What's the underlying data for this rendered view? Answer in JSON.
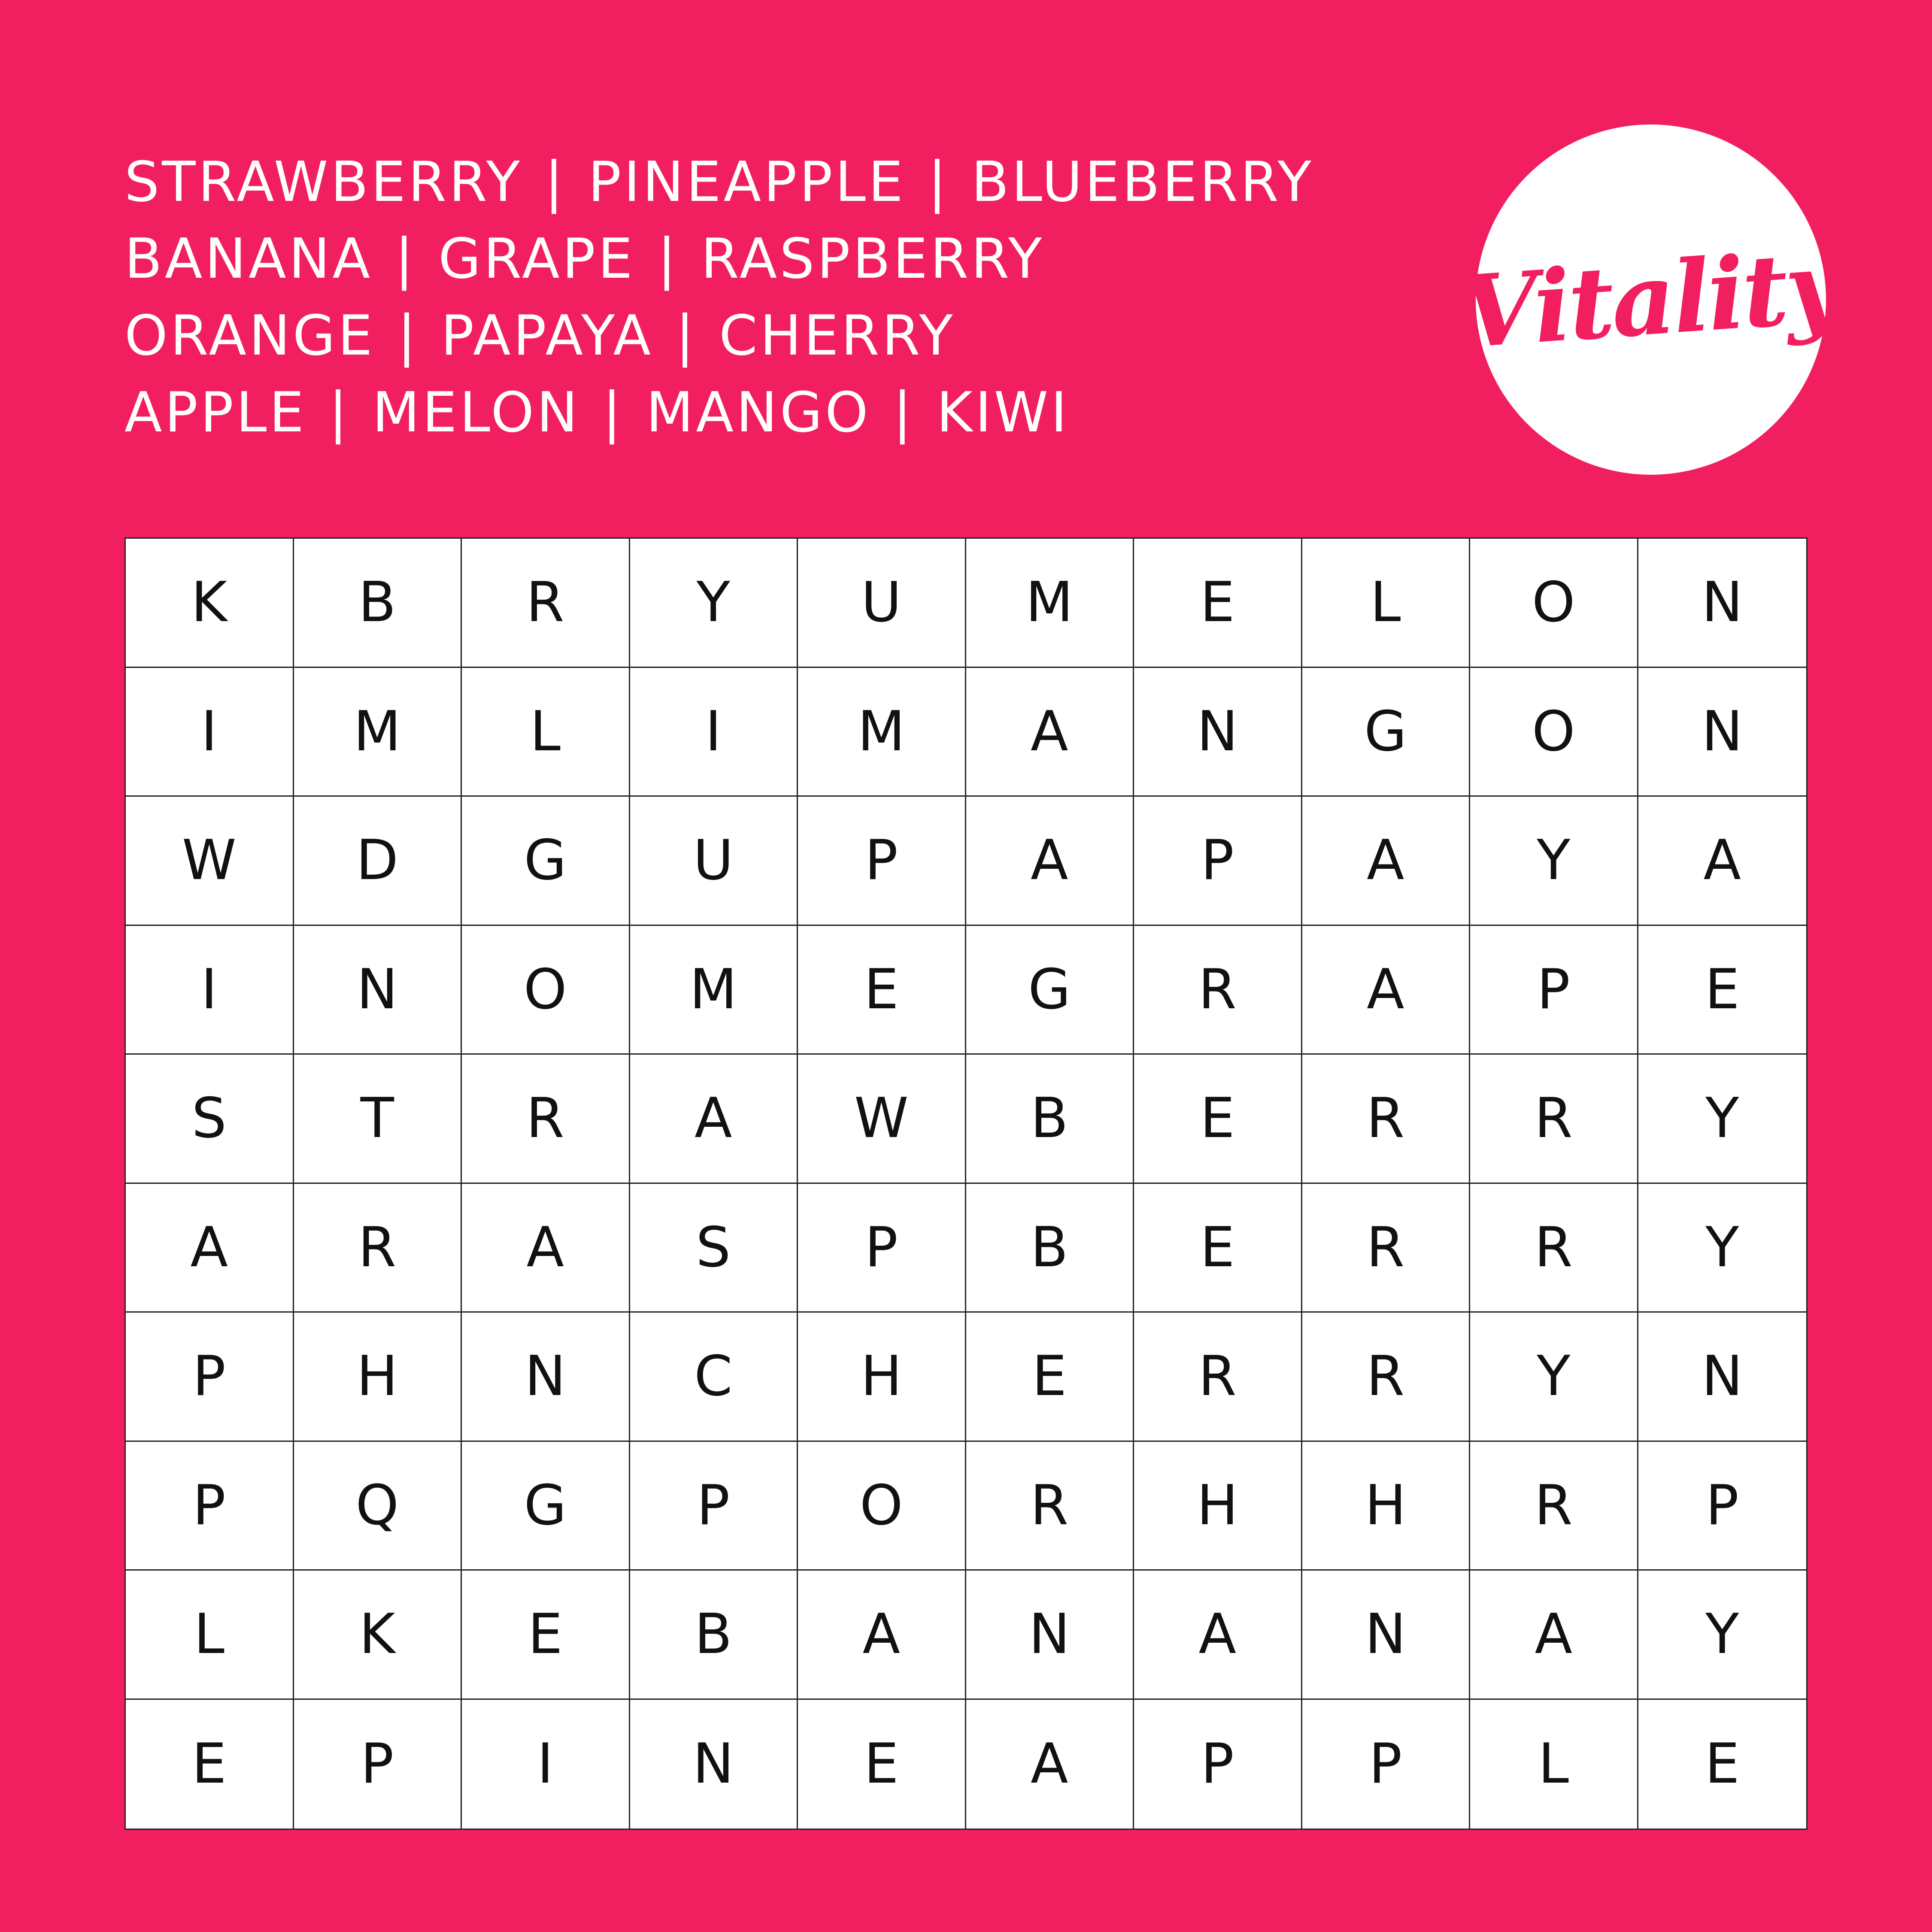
{
  "colors": {
    "background": "#F21F60",
    "grid_background": "#FFFFFF",
    "text": "#FFFFFF",
    "letters": "#111111"
  },
  "logo": {
    "text": "Vitality"
  },
  "word_list": [
    [
      "STRAWBERRY",
      "PINEAPPLE",
      "BLUEBERRY"
    ],
    [
      "BANANA",
      "GRAPE",
      "RASPBERRY"
    ],
    [
      "ORANGE",
      "PAPAYA",
      "CHERRY"
    ],
    [
      "APPLE",
      "MELON",
      "MANGO",
      "KIWI"
    ]
  ],
  "separator": "|",
  "grid": [
    [
      "K",
      "B",
      "R",
      "Y",
      "U",
      "M",
      "E",
      "L",
      "O",
      "N"
    ],
    [
      "I",
      "M",
      "L",
      "I",
      "M",
      "A",
      "N",
      "G",
      "O",
      "N"
    ],
    [
      "W",
      "D",
      "G",
      "U",
      "P",
      "A",
      "P",
      "A",
      "Y",
      "A"
    ],
    [
      "I",
      "N",
      "O",
      "M",
      "E",
      "G",
      "R",
      "A",
      "P",
      "E"
    ],
    [
      "S",
      "T",
      "R",
      "A",
      "W",
      "B",
      "E",
      "R",
      "R",
      "Y"
    ],
    [
      "A",
      "R",
      "A",
      "S",
      "P",
      "B",
      "E",
      "R",
      "R",
      "Y"
    ],
    [
      "P",
      "H",
      "N",
      "C",
      "H",
      "E",
      "R",
      "R",
      "Y",
      "N"
    ],
    [
      "P",
      "Q",
      "G",
      "P",
      "O",
      "R",
      "H",
      "H",
      "R",
      "P"
    ],
    [
      "L",
      "K",
      "E",
      "B",
      "A",
      "N",
      "A",
      "N",
      "A",
      "Y"
    ],
    [
      "E",
      "P",
      "I",
      "N",
      "E",
      "A",
      "P",
      "P",
      "L",
      "E"
    ]
  ]
}
